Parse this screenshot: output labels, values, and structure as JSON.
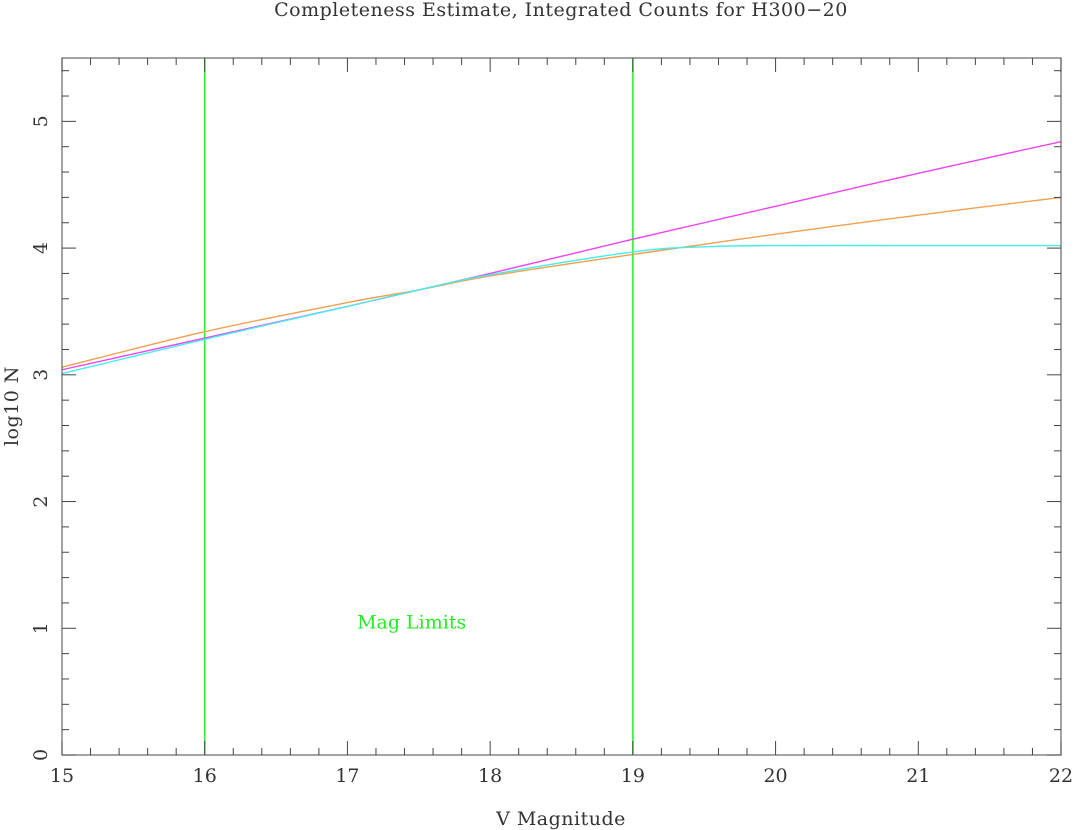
{
  "chart_data": {
    "type": "line",
    "title": "Completeness Estimate, Integrated Counts for H300−20",
    "xlabel": "V Magnitude",
    "ylabel": "log10 N",
    "xlim": [
      15,
      22
    ],
    "ylim": [
      0,
      5.5
    ],
    "x_ticks": [
      15,
      16,
      17,
      18,
      19,
      20,
      21,
      22
    ],
    "y_ticks": [
      0,
      1,
      2,
      3,
      4,
      5
    ],
    "x_minor_step": 0.2,
    "y_minor_step": 0.2,
    "grid": false,
    "legend": null,
    "x": [
      15,
      16,
      17,
      17.5,
      18,
      19,
      19.5,
      20,
      21,
      22
    ],
    "series": [
      {
        "name": "magenta",
        "color": "#ee44ee",
        "values": [
          3.04,
          3.29,
          3.54,
          3.67,
          3.8,
          4.07,
          4.2,
          4.33,
          4.59,
          4.84
        ]
      },
      {
        "name": "orange",
        "color": "#f0a050",
        "values": [
          3.06,
          3.34,
          3.57,
          3.67,
          3.78,
          3.95,
          4.03,
          4.11,
          4.26,
          4.4
        ]
      },
      {
        "name": "cyan",
        "color": "#44eeee",
        "values": [
          3.01,
          3.28,
          3.54,
          3.67,
          3.79,
          3.97,
          4.01,
          4.02,
          4.02,
          4.02
        ]
      }
    ],
    "vertical_lines": [
      {
        "x": 16,
        "color": "#33ee33"
      },
      {
        "x": 19,
        "color": "#33ee33"
      }
    ],
    "annotations": [
      {
        "text": "Mag Limits",
        "x": 17.45,
        "y": 1.0,
        "color": "#22ee22"
      }
    ]
  }
}
